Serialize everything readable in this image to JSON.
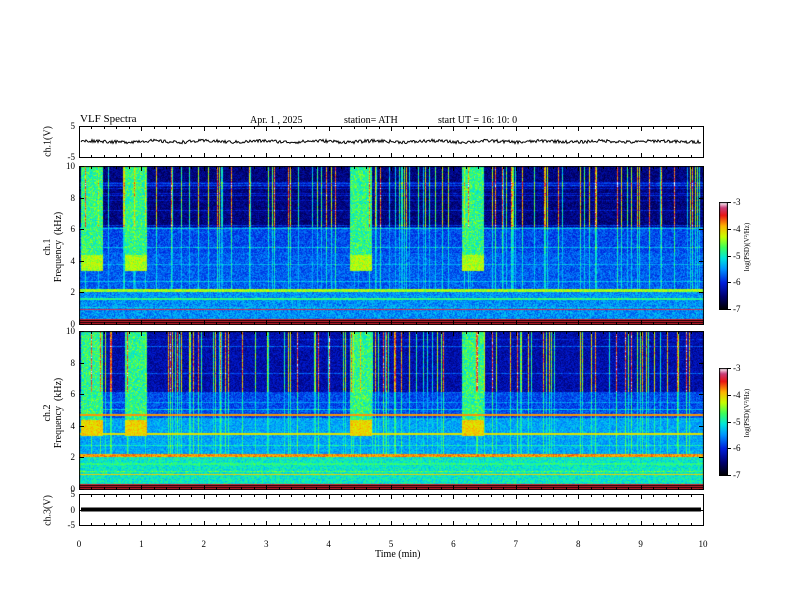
{
  "header": {
    "title": "VLF  Spectra",
    "date": "Apr. 1  , 2025",
    "station": "station= ATH",
    "start": "start  UT  =   16: 10: 0"
  },
  "chart_data": [
    {
      "type": "line",
      "name": "ch1-waveform",
      "ylabel": "ch.1(V)",
      "ylim": [
        -5,
        5
      ],
      "yticks": [
        "5",
        "-5"
      ],
      "xlim": [
        0,
        10
      ],
      "approx_level": 0,
      "approx_amplitude": 0.8
    },
    {
      "type": "heatmap",
      "name": "ch1-spectrogram",
      "ylabel": "ch.1\nFrequency  (kHz)",
      "ylim": [
        0,
        10
      ],
      "yticks": [
        "0",
        "2",
        "4",
        "6",
        "8",
        "10"
      ],
      "xlim": [
        0,
        10
      ],
      "colorbar": {
        "label": "log(PSD)(V²/Hz)",
        "ticks": [
          "-3",
          "-4",
          "-5",
          "-6",
          "-7"
        ],
        "range": [
          -7,
          -3
        ]
      },
      "bursts_min": [
        0.2,
        0.9,
        4.5,
        6.3
      ]
    },
    {
      "type": "heatmap",
      "name": "ch2-spectrogram",
      "ylabel": "ch.2\nFrequency  (kHz)",
      "ylim": [
        0,
        10
      ],
      "yticks": [
        "0",
        "2",
        "4",
        "6",
        "8",
        "10"
      ],
      "xlim": [
        0,
        10
      ],
      "colorbar": {
        "label": "log(PSD)(V²/Hz)",
        "ticks": [
          "-3",
          "-4",
          "-5",
          "-6",
          "-7"
        ],
        "range": [
          -7,
          -3
        ]
      },
      "bursts_min": [
        0.2,
        0.9,
        4.5,
        6.3
      ]
    },
    {
      "type": "line",
      "name": "ch3-waveform",
      "ylabel": "ch.3(V)",
      "ylim": [
        -5,
        5
      ],
      "yticks": [
        "5",
        "0",
        "-5"
      ],
      "xlim": [
        0,
        10
      ],
      "approx_level": 0,
      "xlabel": "Time  (min)",
      "xticks": [
        "0",
        "1",
        "2",
        "3",
        "4",
        "5",
        "6",
        "7",
        "8",
        "9",
        "10"
      ]
    }
  ]
}
